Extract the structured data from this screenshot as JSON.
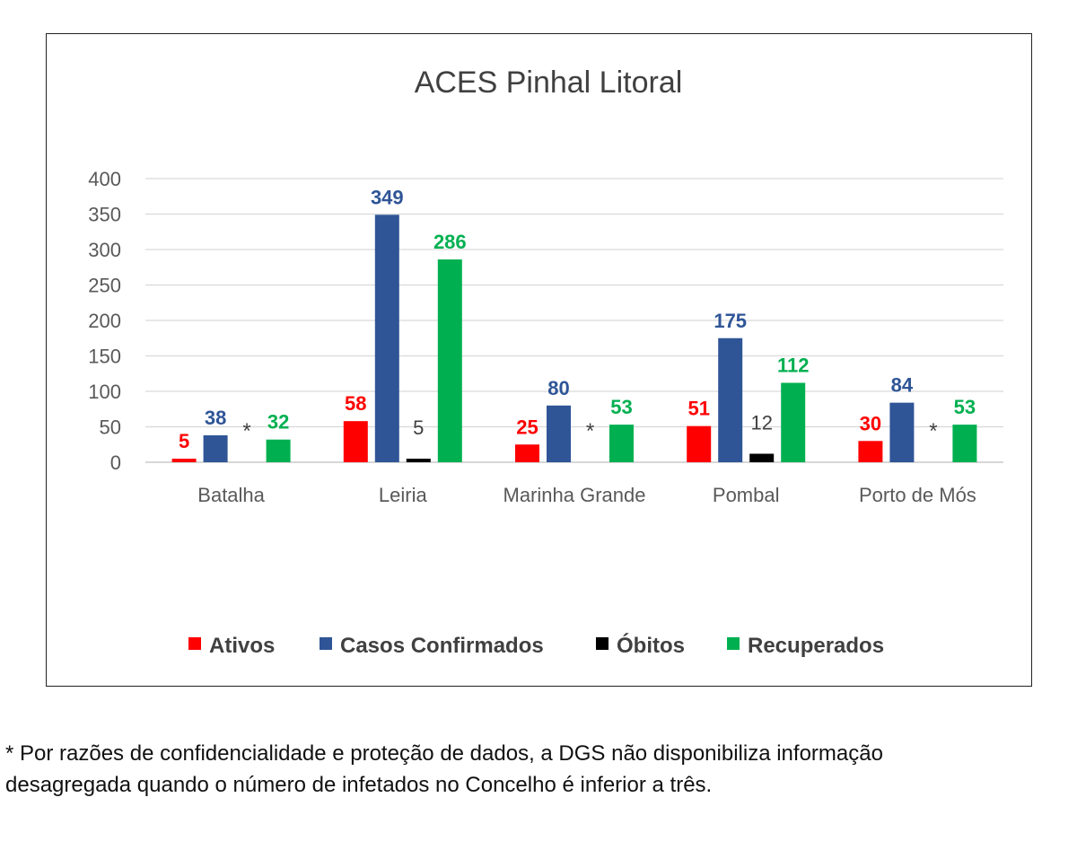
{
  "chart_data": {
    "type": "bar",
    "title": "ACES Pinhal Litoral",
    "categories": [
      "Batalha",
      "Leiria",
      "Marinha Grande",
      "Pombal",
      "Porto de Mós"
    ],
    "series": [
      {
        "name": "Ativos",
        "color": "#ff0000",
        "values": [
          5,
          58,
          25,
          51,
          30
        ],
        "labels": [
          "5",
          "58",
          "25",
          "51",
          "30"
        ]
      },
      {
        "name": "Casos Confirmados",
        "color": "#2f5597",
        "values": [
          38,
          349,
          80,
          175,
          84
        ],
        "labels": [
          "38",
          "349",
          "80",
          "175",
          "84"
        ]
      },
      {
        "name": "Óbitos",
        "color": "#000000",
        "values": [
          null,
          5,
          null,
          12,
          null
        ],
        "labels": [
          "*",
          "5",
          "*",
          "12",
          "*"
        ]
      },
      {
        "name": "Recuperados",
        "color": "#00b050",
        "values": [
          32,
          286,
          53,
          112,
          53
        ],
        "labels": [
          "32",
          "286",
          "53",
          "112",
          "53"
        ]
      }
    ],
    "yticks": [
      "0",
      "50",
      "100",
      "150",
      "200",
      "250",
      "300",
      "350",
      "400"
    ],
    "ylim": [
      0,
      400
    ],
    "grid": true,
    "legend_position": "bottom"
  },
  "footnote": {
    "line1": "* Por razões de confidencialidade e proteção de dados, a DGS não disponibiliza informação",
    "line2": "desagregada quando o número de infetados no Concelho é inferior a três."
  }
}
